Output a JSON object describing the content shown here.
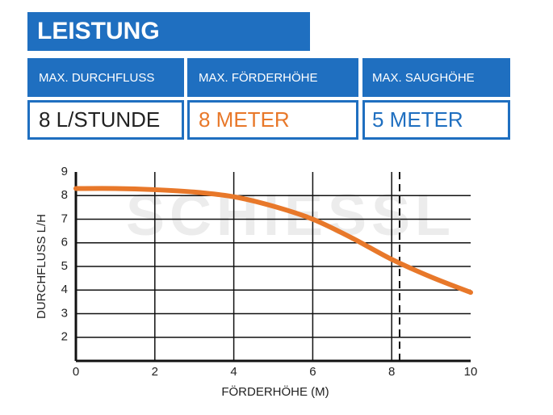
{
  "header": {
    "title": "LEISTUNG",
    "columns": [
      {
        "label": "MAX. DURCHFLUSS",
        "value": "8 L/STUNDE"
      },
      {
        "label": "MAX. FÖRDERHÖHE",
        "value": "8 METER"
      },
      {
        "label": "MAX. SAUGHÖHE",
        "value": "5 METER"
      }
    ]
  },
  "chart_data": {
    "type": "line",
    "watermark": "SCHIESSL",
    "x_label": "FÖRDERHÖHE (M)",
    "y_label": "DURCHFLUSS L/H",
    "x": [
      0,
      1,
      2,
      3,
      4,
      5,
      6,
      7,
      8,
      9,
      10
    ],
    "series": [
      {
        "color": "#e8782a",
        "values": [
          8.3,
          8.3,
          8.25,
          8.15,
          7.95,
          7.55,
          7.0,
          6.2,
          5.3,
          4.55,
          3.9
        ]
      }
    ],
    "xlim": [
      0,
      10
    ],
    "xticks": [
      0,
      2,
      4,
      6,
      8,
      10
    ],
    "ylim": [
      1,
      9
    ],
    "yticks": [
      2,
      3,
      4,
      5,
      6,
      7,
      8,
      9
    ],
    "dashed_x": 8.2,
    "grid": true
  }
}
